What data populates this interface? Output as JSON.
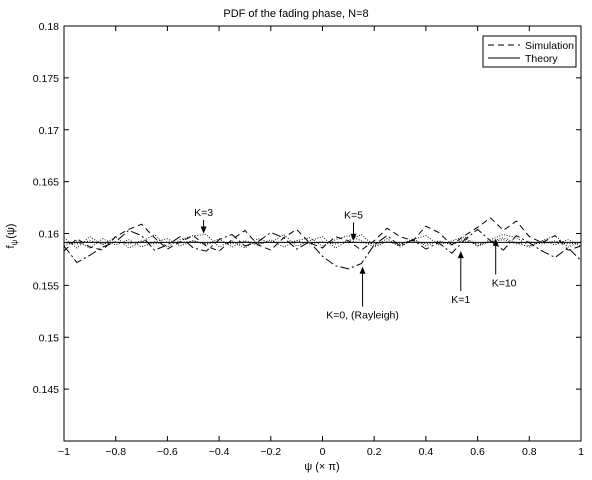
{
  "chart_data": {
    "type": "line",
    "title": "PDF of the fading phase, N=8",
    "xlabel": "ψ (× π)",
    "ylabel": "f",
    "ylabel_sub": "ψ",
    "ylabel_arg": "(ψ)",
    "xlim": [
      -1,
      1
    ],
    "ylim": [
      0.14,
      0.18
    ],
    "xticks": [
      -1,
      -0.8,
      -0.6,
      -0.4,
      -0.2,
      0,
      0.2,
      0.4,
      0.6,
      0.8,
      1
    ],
    "xtick_labels": [
      "−1",
      "−0.8",
      "−0.6",
      "−0.4",
      "−0.2",
      "0",
      "0.2",
      "0.4",
      "0.6",
      "0.8",
      "1"
    ],
    "yticks": [
      0.145,
      0.15,
      0.155,
      0.16,
      0.165,
      0.17,
      0.175,
      0.18
    ],
    "ytick_labels": [
      "0.145",
      "0.15",
      "0.155",
      "0.16",
      "0.165",
      "0.17",
      "0.175",
      "0.18"
    ],
    "grid": false,
    "legend": {
      "placement": "top-right",
      "entries": [
        {
          "label": "Simulation",
          "style": "dashed"
        },
        {
          "label": "Theory",
          "style": "solid"
        }
      ]
    },
    "theory": {
      "name": "Theory",
      "value": 0.15915
    },
    "series": [
      {
        "key": "k0",
        "style": "dashdot",
        "x": [
          -1,
          -0.95,
          -0.9,
          -0.85,
          -0.8,
          -0.75,
          -0.7,
          -0.65,
          -0.6,
          -0.55,
          -0.5,
          -0.45,
          -0.4,
          -0.35,
          -0.3,
          -0.25,
          -0.2,
          -0.15,
          -0.1,
          -0.05,
          0,
          0.05,
          0.1,
          0.15,
          0.2,
          0.25,
          0.3,
          0.35,
          0.4,
          0.45,
          0.5,
          0.55,
          0.6,
          0.65,
          0.7,
          0.75,
          0.8,
          0.85,
          0.9,
          0.95,
          1
        ],
        "y": [
          0.1588,
          0.1572,
          0.1579,
          0.1587,
          0.1592,
          0.1603,
          0.1598,
          0.1584,
          0.1589,
          0.1597,
          0.1586,
          0.1583,
          0.1594,
          0.1599,
          0.1588,
          0.1592,
          0.1601,
          0.1596,
          0.1585,
          0.1592,
          0.1578,
          0.1569,
          0.1566,
          0.1571,
          0.1589,
          0.1598,
          0.1588,
          0.1594,
          0.1585,
          0.1591,
          0.1581,
          0.1594,
          0.1604,
          0.1593,
          0.1584,
          0.1598,
          0.1591,
          0.1583,
          0.1577,
          0.1586,
          0.1574
        ]
      },
      {
        "key": "k1",
        "style": "dashed",
        "x": [
          -1,
          -0.95,
          -0.9,
          -0.85,
          -0.8,
          -0.75,
          -0.7,
          -0.65,
          -0.6,
          -0.55,
          -0.5,
          -0.45,
          -0.4,
          -0.35,
          -0.3,
          -0.25,
          -0.2,
          -0.15,
          -0.1,
          -0.05,
          0,
          0.05,
          0.1,
          0.15,
          0.2,
          0.25,
          0.3,
          0.35,
          0.4,
          0.45,
          0.5,
          0.55,
          0.6,
          0.65,
          0.7,
          0.75,
          0.8,
          0.85,
          0.9,
          0.95,
          1
        ],
        "y": [
          0.1583,
          0.1595,
          0.1587,
          0.1584,
          0.1597,
          0.1604,
          0.1609,
          0.1596,
          0.1585,
          0.1592,
          0.1598,
          0.1588,
          0.1583,
          0.1594,
          0.1603,
          0.1589,
          0.1584,
          0.1596,
          0.1604,
          0.1591,
          0.1586,
          0.1597,
          0.1593,
          0.1584,
          0.1593,
          0.1605,
          0.1597,
          0.1593,
          0.1607,
          0.1601,
          0.1589,
          0.1598,
          0.1606,
          0.1615,
          0.1603,
          0.1612,
          0.1597,
          0.1591,
          0.1598,
          0.1584,
          0.1588
        ]
      },
      {
        "key": "k3",
        "style": "dotted",
        "x": [
          -1,
          -0.95,
          -0.9,
          -0.85,
          -0.8,
          -0.75,
          -0.7,
          -0.65,
          -0.6,
          -0.55,
          -0.5,
          -0.45,
          -0.4,
          -0.35,
          -0.3,
          -0.25,
          -0.2,
          -0.15,
          -0.1,
          -0.05,
          0,
          0.05,
          0.1,
          0.15,
          0.2,
          0.25,
          0.3,
          0.35,
          0.4,
          0.45,
          0.5,
          0.55,
          0.6,
          0.65,
          0.7,
          0.75,
          0.8,
          0.85,
          0.9,
          0.95,
          1
        ],
        "y": [
          0.1596,
          0.1586,
          0.1597,
          0.1589,
          0.1597,
          0.1586,
          0.1592,
          0.1599,
          0.1587,
          0.1594,
          0.1598,
          0.1599,
          0.1587,
          0.1593,
          0.1586,
          0.1595,
          0.1591,
          0.1599,
          0.1588,
          0.1593,
          0.1597,
          0.1586,
          0.1593,
          0.1599,
          0.1588,
          0.1595,
          0.1587,
          0.1594,
          0.1598,
          0.1589,
          0.1593,
          0.1597,
          0.1588,
          0.1594,
          0.1599,
          0.1596,
          0.1588,
          0.1593,
          0.1598,
          0.1587,
          0.1592
        ]
      },
      {
        "key": "k5",
        "style": "dotted",
        "x": [
          -1,
          -0.95,
          -0.9,
          -0.85,
          -0.8,
          -0.75,
          -0.7,
          -0.65,
          -0.6,
          -0.55,
          -0.5,
          -0.45,
          -0.4,
          -0.35,
          -0.3,
          -0.25,
          -0.2,
          -0.15,
          -0.1,
          -0.05,
          0,
          0.05,
          0.1,
          0.15,
          0.2,
          0.25,
          0.3,
          0.35,
          0.4,
          0.45,
          0.5,
          0.55,
          0.6,
          0.65,
          0.7,
          0.75,
          0.8,
          0.85,
          0.9,
          0.95,
          1
        ],
        "y": [
          0.1588,
          0.1593,
          0.1586,
          0.1595,
          0.1589,
          0.1594,
          0.1587,
          0.1592,
          0.1595,
          0.1588,
          0.1593,
          0.1589,
          0.1595,
          0.1587,
          0.1592,
          0.1589,
          0.1594,
          0.1587,
          0.1593,
          0.1596,
          0.1588,
          0.1594,
          0.1598,
          0.1593,
          0.1587,
          0.1592,
          0.1589,
          0.1595,
          0.1588,
          0.1593,
          0.1589,
          0.1595,
          0.1588,
          0.1592,
          0.1596,
          0.1591,
          0.1587,
          0.1593,
          0.1589,
          0.1594,
          0.1588
        ]
      },
      {
        "key": "k10",
        "style": "dotted",
        "x": [
          -1,
          -0.95,
          -0.9,
          -0.85,
          -0.8,
          -0.75,
          -0.7,
          -0.65,
          -0.6,
          -0.55,
          -0.5,
          -0.45,
          -0.4,
          -0.35,
          -0.3,
          -0.25,
          -0.2,
          -0.15,
          -0.1,
          -0.05,
          0,
          0.05,
          0.1,
          0.15,
          0.2,
          0.25,
          0.3,
          0.35,
          0.4,
          0.45,
          0.5,
          0.55,
          0.6,
          0.65,
          0.7,
          0.75,
          0.8,
          0.85,
          0.9,
          0.95,
          1
        ],
        "y": [
          0.1591,
          0.159,
          0.1593,
          0.159,
          0.1592,
          0.159,
          0.1593,
          0.159,
          0.1592,
          0.1591,
          0.1593,
          0.159,
          0.1592,
          0.159,
          0.1593,
          0.159,
          0.1592,
          0.1591,
          0.1593,
          0.159,
          0.1592,
          0.159,
          0.1593,
          0.1591,
          0.159,
          0.1592,
          0.159,
          0.1593,
          0.159,
          0.1592,
          0.159,
          0.1593,
          0.159,
          0.1592,
          0.1594,
          0.159,
          0.1592,
          0.159,
          0.1593,
          0.159,
          0.1591
        ]
      }
    ],
    "annotations": [
      {
        "text": "K=3",
        "x": -0.46,
        "y": 0.16,
        "text_y": 0.1617,
        "anchor": "middle"
      },
      {
        "text": "K=5",
        "x": 0.12,
        "y": 0.1593,
        "text_y": 0.16145,
        "anchor": "middle"
      },
      {
        "text": "K=0, (Rayleigh)",
        "x": 0.155,
        "y": 0.1568,
        "text_y": 0.1518,
        "anchor": "middle"
      },
      {
        "text": "K=1",
        "x": 0.535,
        "y": 0.1583,
        "text_y": 0.1533,
        "anchor": "middle"
      },
      {
        "text": "K=10",
        "x": 0.67,
        "y": 0.1595,
        "text_y": 0.1549,
        "anchor": "start"
      }
    ]
  }
}
